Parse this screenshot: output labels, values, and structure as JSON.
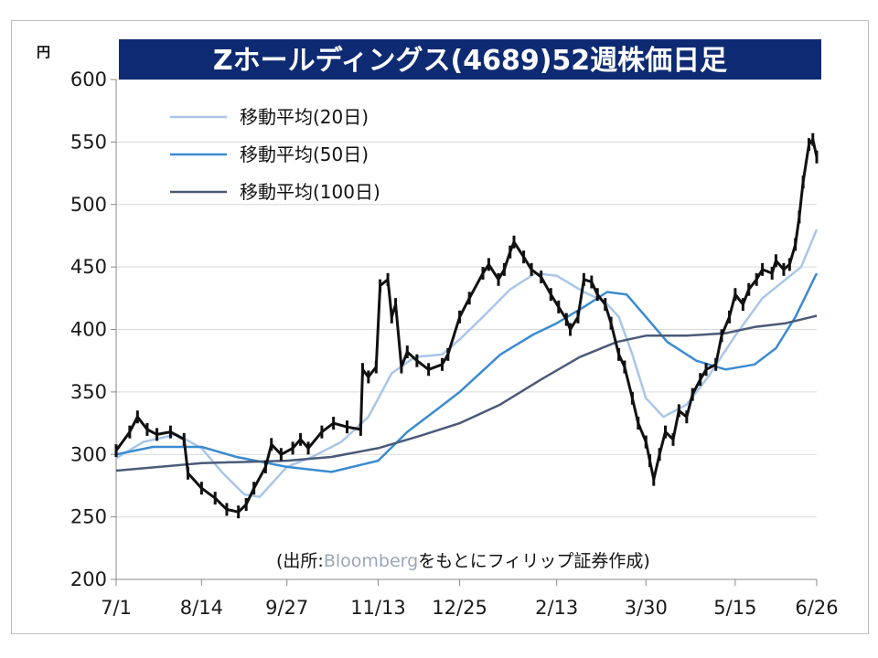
{
  "chart_data": {
    "type": "line",
    "title": "Zホールディングス(4689)52週株価日足",
    "unit_label": "円",
    "ylim": [
      200,
      600
    ],
    "yticks": [
      200,
      250,
      300,
      350,
      400,
      450,
      500,
      550,
      600
    ],
    "x_range": [
      "2019-07-01",
      "2020-06-26"
    ],
    "x_tick_labels": [
      {
        "label": "7/1",
        "date": "2019-07-01"
      },
      {
        "label": "8/14",
        "date": "2019-08-14"
      },
      {
        "label": "9/27",
        "date": "2019-09-27"
      },
      {
        "label": "11/13",
        "date": "2019-11-13"
      },
      {
        "label": "12/25",
        "date": "2019-12-25"
      },
      {
        "label": "2/13",
        "date": "2020-02-13"
      },
      {
        "label": "3/30",
        "date": "2020-03-30"
      },
      {
        "label": "5/15",
        "date": "2020-05-15"
      },
      {
        "label": "6/26",
        "date": "2020-06-26"
      }
    ],
    "grid": "horizontal",
    "legend_position": "top-left",
    "source": {
      "prefix": "(出所:",
      "brand": "Bloomberg",
      "suffix": "をもとにフィリップ証券作成)"
    },
    "series": [
      {
        "name": "",
        "role": "price",
        "color": "#111111",
        "points": [
          [
            "2019-07-01",
            303
          ],
          [
            "2019-07-08",
            318
          ],
          [
            "2019-07-12",
            330
          ],
          [
            "2019-07-17",
            320
          ],
          [
            "2019-07-22",
            316
          ],
          [
            "2019-07-29",
            318
          ],
          [
            "2019-08-05",
            312
          ],
          [
            "2019-08-07",
            285
          ],
          [
            "2019-08-14",
            273
          ],
          [
            "2019-08-21",
            265
          ],
          [
            "2019-08-27",
            256
          ],
          [
            "2019-09-02",
            254
          ],
          [
            "2019-09-06",
            260
          ],
          [
            "2019-09-10",
            273
          ],
          [
            "2019-09-16",
            290
          ],
          [
            "2019-09-19",
            308
          ],
          [
            "2019-09-24",
            300
          ],
          [
            "2019-09-30",
            305
          ],
          [
            "2019-10-04",
            312
          ],
          [
            "2019-10-08",
            305
          ],
          [
            "2019-10-15",
            318
          ],
          [
            "2019-10-21",
            325
          ],
          [
            "2019-10-28",
            322
          ],
          [
            "2019-11-04",
            320
          ],
          [
            "2019-11-05",
            368
          ],
          [
            "2019-11-08",
            362
          ],
          [
            "2019-11-12",
            370
          ],
          [
            "2019-11-14",
            435
          ],
          [
            "2019-11-18",
            440
          ],
          [
            "2019-11-20",
            410
          ],
          [
            "2019-11-22",
            420
          ],
          [
            "2019-11-25",
            370
          ],
          [
            "2019-11-28",
            382
          ],
          [
            "2019-12-03",
            375
          ],
          [
            "2019-12-09",
            368
          ],
          [
            "2019-12-16",
            372
          ],
          [
            "2019-12-19",
            380
          ],
          [
            "2019-12-25",
            410
          ],
          [
            "2019-12-30",
            425
          ],
          [
            "2020-01-06",
            445
          ],
          [
            "2020-01-09",
            452
          ],
          [
            "2020-01-14",
            440
          ],
          [
            "2020-01-17",
            448
          ],
          [
            "2020-01-20",
            462
          ],
          [
            "2020-01-22",
            470
          ],
          [
            "2020-01-27",
            458
          ],
          [
            "2020-01-31",
            448
          ],
          [
            "2020-02-05",
            442
          ],
          [
            "2020-02-10",
            428
          ],
          [
            "2020-02-14",
            418
          ],
          [
            "2020-02-18",
            408
          ],
          [
            "2020-02-20",
            400
          ],
          [
            "2020-02-24",
            410
          ],
          [
            "2020-02-27",
            440
          ],
          [
            "2020-03-02",
            438
          ],
          [
            "2020-03-05",
            428
          ],
          [
            "2020-03-09",
            420
          ],
          [
            "2020-03-12",
            405
          ],
          [
            "2020-03-16",
            380
          ],
          [
            "2020-03-19",
            370
          ],
          [
            "2020-03-23",
            345
          ],
          [
            "2020-03-26",
            325
          ],
          [
            "2020-03-30",
            310
          ],
          [
            "2020-04-01",
            295
          ],
          [
            "2020-04-03",
            280
          ],
          [
            "2020-04-06",
            300
          ],
          [
            "2020-04-09",
            318
          ],
          [
            "2020-04-13",
            312
          ],
          [
            "2020-04-16",
            335
          ],
          [
            "2020-04-20",
            330
          ],
          [
            "2020-04-23",
            348
          ],
          [
            "2020-04-27",
            360
          ],
          [
            "2020-04-30",
            368
          ],
          [
            "2020-05-05",
            372
          ],
          [
            "2020-05-08",
            395
          ],
          [
            "2020-05-12",
            410
          ],
          [
            "2020-05-15",
            428
          ],
          [
            "2020-05-19",
            420
          ],
          [
            "2020-05-22",
            432
          ],
          [
            "2020-05-26",
            440
          ],
          [
            "2020-05-29",
            448
          ],
          [
            "2020-06-03",
            445
          ],
          [
            "2020-06-05",
            455
          ],
          [
            "2020-06-09",
            448
          ],
          [
            "2020-06-12",
            452
          ],
          [
            "2020-06-15",
            468
          ],
          [
            "2020-06-17",
            490
          ],
          [
            "2020-06-19",
            518
          ],
          [
            "2020-06-22",
            548
          ],
          [
            "2020-06-24",
            552
          ],
          [
            "2020-06-26",
            538
          ]
        ]
      },
      {
        "name": "移動平均(20日)",
        "color": "#a9c6e8",
        "points": [
          [
            "2019-07-01",
            297
          ],
          [
            "2019-07-15",
            310
          ],
          [
            "2019-08-01",
            316
          ],
          [
            "2019-08-14",
            305
          ],
          [
            "2019-08-25",
            285
          ],
          [
            "2019-09-05",
            268
          ],
          [
            "2019-09-13",
            266
          ],
          [
            "2019-09-27",
            290
          ],
          [
            "2019-10-10",
            298
          ],
          [
            "2019-10-25",
            310
          ],
          [
            "2019-11-08",
            330
          ],
          [
            "2019-11-20",
            365
          ],
          [
            "2019-12-02",
            378
          ],
          [
            "2019-12-16",
            380
          ],
          [
            "2019-12-25",
            392
          ],
          [
            "2020-01-06",
            410
          ],
          [
            "2020-01-20",
            432
          ],
          [
            "2020-02-02",
            445
          ],
          [
            "2020-02-13",
            443
          ],
          [
            "2020-02-27",
            430
          ],
          [
            "2020-03-09",
            422
          ],
          [
            "2020-03-16",
            410
          ],
          [
            "2020-03-23",
            380
          ],
          [
            "2020-03-30",
            345
          ],
          [
            "2020-04-08",
            330
          ],
          [
            "2020-04-20",
            340
          ],
          [
            "2020-05-01",
            362
          ],
          [
            "2020-05-15",
            395
          ],
          [
            "2020-05-29",
            425
          ],
          [
            "2020-06-10",
            440
          ],
          [
            "2020-06-18",
            450
          ],
          [
            "2020-06-26",
            480
          ]
        ]
      },
      {
        "name": "移動平均(50日)",
        "color": "#3b8bd0",
        "points": [
          [
            "2019-07-01",
            300
          ],
          [
            "2019-07-20",
            306
          ],
          [
            "2019-08-14",
            306
          ],
          [
            "2019-09-01",
            298
          ],
          [
            "2019-09-27",
            290
          ],
          [
            "2019-10-20",
            286
          ],
          [
            "2019-11-13",
            295
          ],
          [
            "2019-11-28",
            318
          ],
          [
            "2019-12-15",
            338
          ],
          [
            "2019-12-25",
            350
          ],
          [
            "2020-01-15",
            380
          ],
          [
            "2020-02-01",
            396
          ],
          [
            "2020-02-13",
            405
          ],
          [
            "2020-02-27",
            418
          ],
          [
            "2020-03-10",
            430
          ],
          [
            "2020-03-20",
            428
          ],
          [
            "2020-03-30",
            410
          ],
          [
            "2020-04-10",
            390
          ],
          [
            "2020-04-25",
            375
          ],
          [
            "2020-05-10",
            368
          ],
          [
            "2020-05-25",
            372
          ],
          [
            "2020-06-05",
            385
          ],
          [
            "2020-06-15",
            410
          ],
          [
            "2020-06-26",
            445
          ]
        ]
      },
      {
        "name": "移動平均(100日)",
        "color": "#4a5a78",
        "points": [
          [
            "2019-07-01",
            287
          ],
          [
            "2019-08-14",
            293
          ],
          [
            "2019-09-27",
            295
          ],
          [
            "2019-10-20",
            298
          ],
          [
            "2019-11-13",
            305
          ],
          [
            "2019-12-05",
            315
          ],
          [
            "2019-12-25",
            325
          ],
          [
            "2020-01-15",
            340
          ],
          [
            "2020-02-05",
            360
          ],
          [
            "2020-02-25",
            378
          ],
          [
            "2020-03-15",
            390
          ],
          [
            "2020-03-30",
            395
          ],
          [
            "2020-04-20",
            395
          ],
          [
            "2020-05-10",
            397
          ],
          [
            "2020-05-25",
            402
          ],
          [
            "2020-06-10",
            405
          ],
          [
            "2020-06-26",
            411
          ]
        ]
      }
    ]
  }
}
